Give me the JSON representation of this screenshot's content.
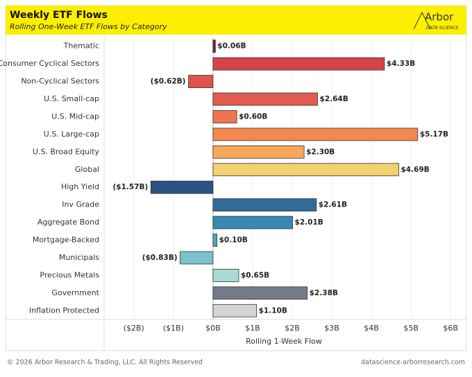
{
  "chart_data": {
    "type": "bar",
    "orientation": "horizontal",
    "title": "Weekly ETF Flows",
    "subtitle": "Rolling One-Week ETF Flows by Category",
    "logo": {
      "name": "Arbor",
      "tagline": "DATA SCIENCE"
    },
    "x_label": "Rolling 1-Week Flow",
    "footer_left": "© 2026 Arbor Research & Trading, LLC. All Rights Reserved",
    "footer_right": "datascience.arborresearch.com",
    "categories": [
      "Thematic",
      "Consumer Cyclical Sectors",
      "Non-Cyclical Sectors",
      "U.S. Small-cap",
      "U.S. Mid-cap",
      "U.S. Large-cap",
      "U.S. Broad Equity",
      "Global",
      "High Yield",
      "Inv Grade",
      "Aggregate Bond",
      "Mortgage-Backed",
      "Municipals",
      "Precious Metals",
      "Government",
      "Inflation Protected"
    ],
    "values": [
      0.06,
      4.33,
      -0.62,
      2.64,
      0.6,
      5.17,
      2.3,
      4.69,
      -1.57,
      2.61,
      2.01,
      0.1,
      -0.83,
      0.65,
      2.38,
      1.1
    ],
    "value_labels": [
      "$0.06B",
      "$4.33B",
      "($0.62B)",
      "$2.64B",
      "$0.60B",
      "$5.17B",
      "$2.30B",
      "$4.69B",
      "($1.57B)",
      "$2.61B",
      "$2.01B",
      "$0.10B",
      "($0.83B)",
      "$0.65B",
      "$2.38B",
      "$1.10B"
    ],
    "colors": [
      "#8b1a2e",
      "#d8434b",
      "#e0534b",
      "#e35b4f",
      "#ef744f",
      "#f5884f",
      "#f8a85c",
      "#f0d06f",
      "#2c5282",
      "#306c97",
      "#3689b0",
      "#4fa2bf",
      "#7ac0cd",
      "#a8dbd6",
      "#737b8b",
      "#d4d4d4"
    ],
    "xlim": [
      -2.75,
      6.4
    ],
    "xticks": [
      {
        "value": -2,
        "label": "($2B)"
      },
      {
        "value": -1,
        "label": "($1B)"
      },
      {
        "value": 0,
        "label": "$0B"
      },
      {
        "value": 1,
        "label": "$1B"
      },
      {
        "value": 2,
        "label": "$2B"
      },
      {
        "value": 3,
        "label": "$3B"
      },
      {
        "value": 4,
        "label": "$4B"
      },
      {
        "value": 5,
        "label": "$5B"
      },
      {
        "value": 6,
        "label": "$6B"
      }
    ],
    "grid": true
  }
}
